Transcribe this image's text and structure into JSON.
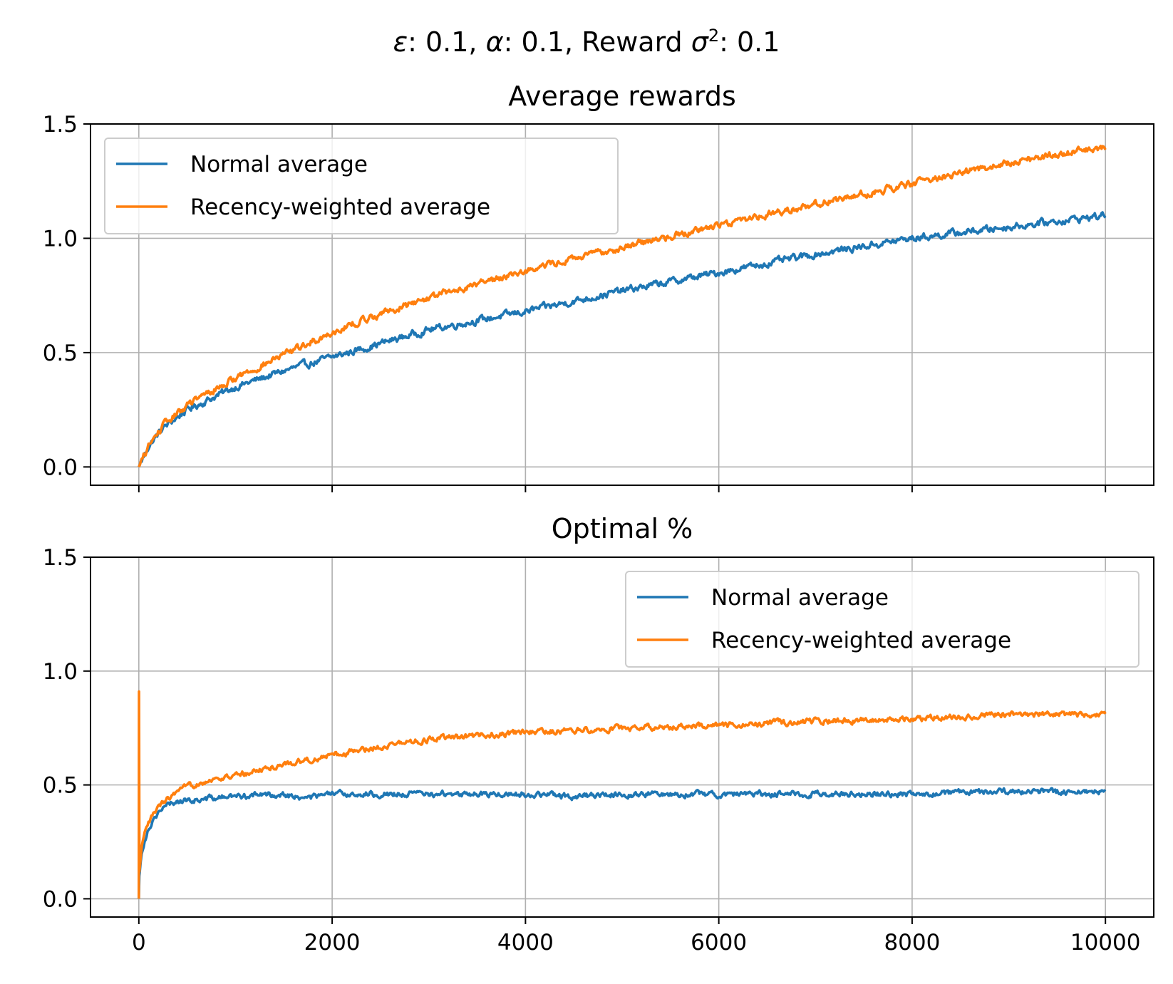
{
  "figure": {
    "suptitle_parts": [
      "ε",
      ": 0.1, ",
      "α",
      ": 0.1, Reward ",
      "σ",
      "2",
      ": 0.1"
    ]
  },
  "colors": {
    "normal": "#1f77b4",
    "recency": "#ff7f0e",
    "grid": "#b0b0b0",
    "axis": "#000000"
  },
  "chart_data": [
    {
      "type": "line",
      "title": "Average rewards",
      "xlabel": "",
      "ylabel": "",
      "xlim": [
        -500,
        10500
      ],
      "ylim": [
        -0.08,
        1.5
      ],
      "xticks": [
        0,
        2000,
        4000,
        6000,
        8000,
        10000
      ],
      "xtick_labels_visible": false,
      "yticks": [
        0.0,
        0.5,
        1.0,
        1.5
      ],
      "ytick_labels": [
        "0.0",
        "0.5",
        "1.0",
        "1.5"
      ],
      "grid": true,
      "legend_position": "upper-left",
      "noise_amplitude": 0.012,
      "series": [
        {
          "name": "Normal average",
          "color": "#1f77b4",
          "x": [
            0,
            100,
            250,
            500,
            1000,
            1500,
            2000,
            2500,
            3000,
            4000,
            5000,
            6000,
            7000,
            8000,
            9000,
            10000
          ],
          "values": [
            0.0,
            0.09,
            0.17,
            0.25,
            0.35,
            0.42,
            0.48,
            0.54,
            0.6,
            0.68,
            0.77,
            0.85,
            0.93,
            1.0,
            1.05,
            1.1
          ]
        },
        {
          "name": "Recency-weighted average",
          "color": "#ff7f0e",
          "x": [
            0,
            100,
            250,
            500,
            1000,
            1500,
            2000,
            2500,
            3000,
            4000,
            5000,
            6000,
            7000,
            8000,
            9000,
            10000
          ],
          "values": [
            0.0,
            0.09,
            0.18,
            0.27,
            0.39,
            0.49,
            0.59,
            0.67,
            0.74,
            0.86,
            0.96,
            1.06,
            1.15,
            1.24,
            1.33,
            1.4
          ]
        }
      ]
    },
    {
      "type": "line",
      "title": "Optimal %",
      "xlabel": "",
      "ylabel": "",
      "xlim": [
        -500,
        10500
      ],
      "ylim": [
        -0.08,
        1.5
      ],
      "xticks": [
        0,
        2000,
        4000,
        6000,
        8000,
        10000
      ],
      "xtick_labels": [
        "0",
        "2000",
        "4000",
        "6000",
        "8000",
        "10000"
      ],
      "yticks": [
        0.0,
        0.5,
        1.0,
        1.5
      ],
      "ytick_labels": [
        "0.0",
        "0.5",
        "1.0",
        "1.5"
      ],
      "grid": true,
      "legend_position": "upper-right",
      "noise_amplitude": 0.01,
      "series": [
        {
          "name": "Normal average",
          "color": "#1f77b4",
          "x": [
            0,
            5,
            30,
            60,
            100,
            150,
            200,
            300,
            400,
            500,
            700,
            1000,
            1500,
            1700,
            2000,
            3000,
            4000,
            4500,
            5000,
            6000,
            7000,
            8000,
            9000,
            10000
          ],
          "values": [
            0.0,
            0.1,
            0.2,
            0.26,
            0.31,
            0.35,
            0.38,
            0.41,
            0.43,
            0.43,
            0.44,
            0.45,
            0.46,
            0.44,
            0.46,
            0.46,
            0.46,
            0.45,
            0.46,
            0.46,
            0.46,
            0.46,
            0.47,
            0.47
          ]
        },
        {
          "name": "Recency-weighted average",
          "color": "#ff7f0e",
          "x": [
            0,
            2,
            6,
            30,
            60,
            100,
            150,
            200,
            300,
            500,
            700,
            1000,
            1200,
            1500,
            2000,
            2500,
            3000,
            4000,
            5000,
            6000,
            7000,
            8000,
            9000,
            10000
          ],
          "values": [
            0.0,
            0.91,
            0.12,
            0.22,
            0.28,
            0.33,
            0.37,
            0.4,
            0.44,
            0.49,
            0.52,
            0.54,
            0.56,
            0.59,
            0.63,
            0.67,
            0.7,
            0.73,
            0.75,
            0.76,
            0.78,
            0.79,
            0.81,
            0.81
          ]
        }
      ]
    }
  ]
}
